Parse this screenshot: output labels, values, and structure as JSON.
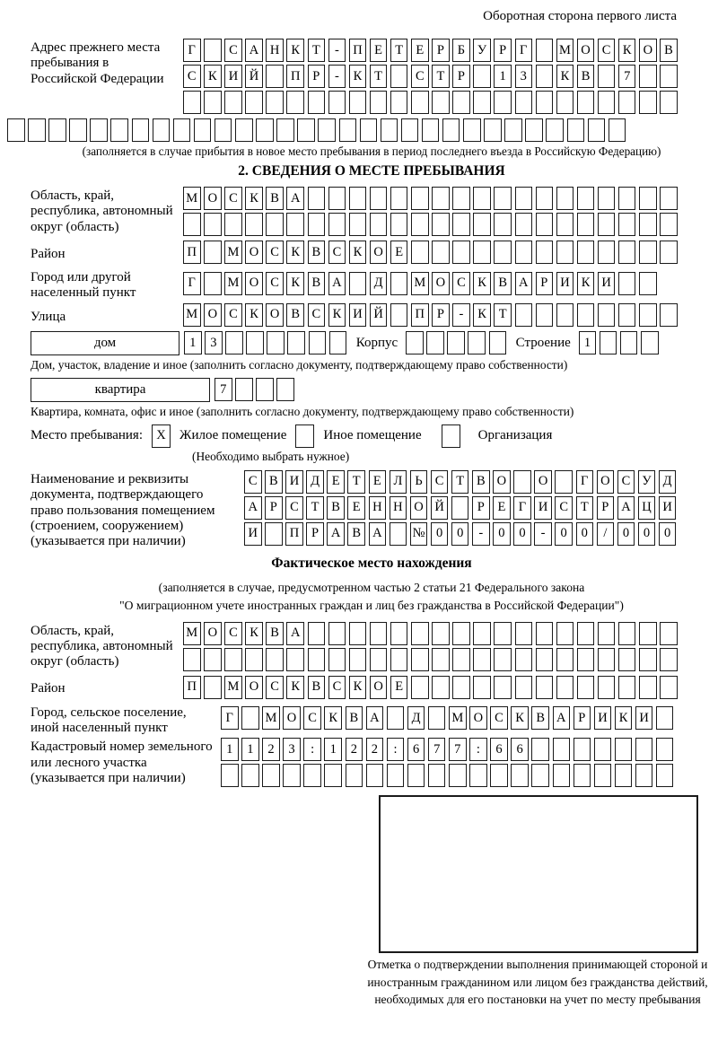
{
  "header_note": "Оборотная сторона первого листа",
  "prev_address": {
    "label": "Адрес прежнего места пребывания в Российской Федерации",
    "row1": {
      "text": "Г САНКТ-ПЕТЕРБУРГ МОСКОВ",
      "len": 24
    },
    "row2": {
      "text": "СКИЙ ПР-КТ СТР 13 КВ 7",
      "len": 24
    },
    "row3": {
      "text": "",
      "len": 24
    },
    "row4": {
      "text": "",
      "len": 30
    },
    "caption": "(заполняется в случае прибытия в новое место пребывания в период последнего въезда в Российскую Федерацию)"
  },
  "section2": {
    "title": "2. СВЕДЕНИЯ О МЕСТЕ ПРЕБЫВАНИЯ",
    "region": {
      "label": "Область, край, республика, автономный округ (область)",
      "row1": {
        "text": "МОСКВА",
        "len": 24
      },
      "row2": {
        "text": "",
        "len": 24
      }
    },
    "district": {
      "label": "Район",
      "row": {
        "text": "П МОСКВСКОЕ",
        "len": 24
      }
    },
    "city": {
      "label": "Город или другой населенный пункт",
      "row": {
        "text": "Г МОСКВА Д МОСКВАРИКИ",
        "len": 23
      }
    },
    "street": {
      "label": "Улица",
      "row": {
        "text": "МОСКОВСКИЙ ПР-КТ",
        "len": 24
      }
    },
    "house": {
      "box_label": "дом",
      "cells": {
        "text": "13",
        "len": 8
      },
      "korpus_label": "Корпус",
      "korpus_cells": {
        "text": "",
        "len": 5
      },
      "stroenie_label": "Строение",
      "stroenie_cells": {
        "text": "1",
        "len": 4
      },
      "caption": "Дом, участок, владение и иное (заполнить согласно документу, подтверждающему право собственности)"
    },
    "apartment": {
      "box_label": "квартира",
      "cells": {
        "text": "7",
        "len": 4
      },
      "caption": "Квартира, комната, офис и иное (заполнить согласно документу, подтверждающему право собственности)"
    },
    "stay_type": {
      "label": "Место пребывания:",
      "check1": "X",
      "option1": "Жилое помещение",
      "check2": "",
      "option2": "Иное помещение",
      "check3": "",
      "option3": "Организация",
      "note": "(Необходимо выбрать нужное)"
    },
    "doc": {
      "label": "Наименование и реквизиты документа, подтверждающего право пользования помещением (строением, сооружением) (указывается при наличии)",
      "row1": {
        "text": "СВИДЕТЕЛЬСТВО О ГОСУД",
        "len": 21
      },
      "row2": {
        "text": "АРСТВЕННОЙ РЕГИСТРАЦИ",
        "len": 21
      },
      "row3": {
        "text": "И ПРАВА №00-00-00/000",
        "len": 21
      }
    }
  },
  "actual_location": {
    "title": "Фактическое место нахождения",
    "caption_line1": "(заполняется в случае, предусмотренном частью 2 статьи 21 Федерального закона",
    "caption_line2": "\"О миграционном учете иностранных граждан и лиц без гражданства в Российской Федерации\")",
    "region": {
      "label": "Область, край, республика, автономный округ (область)",
      "row1": {
        "text": "МОСКВА",
        "len": 24
      },
      "row2": {
        "text": "",
        "len": 24
      }
    },
    "district": {
      "label": "Район",
      "row": {
        "text": "П МОСКВСКОЕ",
        "len": 24
      }
    },
    "city": {
      "label": "Город, сельское поселение, иной населенный пункт",
      "row": {
        "text": "Г МОСКВА Д МОСКВАРИКИ",
        "len": 22
      }
    },
    "cadastre": {
      "label": "Кадастровый номер земельного или лесного участка (указывается при наличии)",
      "row1": {
        "text": "1123:122:677:66",
        "len": 22
      },
      "row2": {
        "text": "",
        "len": 22
      }
    }
  },
  "confirmation": {
    "caption": "Отметка о подтверждении выполнения принимающей стороной и иностранным гражданином или лицом без гражданства действий, необходимых для его постановки на учет по месту пребывания"
  }
}
